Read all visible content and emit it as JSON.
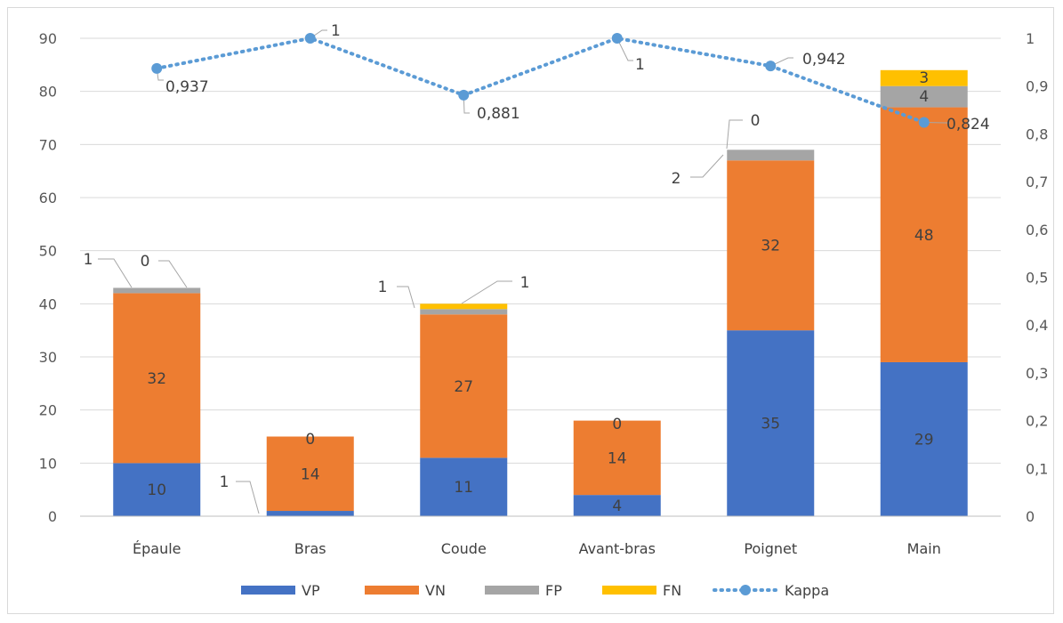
{
  "chart_data": {
    "type": "bar",
    "subtype": "stacked-bar-with-line-secondary-axis",
    "categories": [
      "Épaule",
      "Bras",
      "Coude",
      "Avant-bras",
      "Poignet",
      "Main"
    ],
    "series": [
      {
        "name": "VP",
        "kind": "bar",
        "color": "#4472c4",
        "values": [
          10,
          1,
          11,
          4,
          35,
          29
        ]
      },
      {
        "name": "VN",
        "kind": "bar",
        "color": "#ed7d31",
        "values": [
          32,
          14,
          27,
          14,
          32,
          48
        ]
      },
      {
        "name": "FP",
        "kind": "bar",
        "color": "#a5a5a5",
        "values": [
          1,
          0,
          1,
          0,
          2,
          4
        ]
      },
      {
        "name": "FN",
        "kind": "bar",
        "color": "#ffc000",
        "values": [
          0,
          0,
          1,
          0,
          0,
          3
        ]
      },
      {
        "name": "Kappa",
        "kind": "line",
        "axis": "secondary",
        "style": "dotted-with-markers",
        "color": "#5b9bd5",
        "values": [
          0.937,
          1,
          0.881,
          1,
          0.942,
          0.824
        ]
      }
    ],
    "data_labels": {
      "VP": [
        "10",
        "1",
        "11",
        "4",
        "35",
        "29"
      ],
      "VN": [
        "32",
        "14",
        "27",
        "14",
        "32",
        "48"
      ],
      "FP": [
        "1",
        "0",
        "1",
        "0",
        "2",
        "4"
      ],
      "FN": [
        "0",
        "0",
        "1",
        "0",
        "0",
        "3"
      ],
      "Kappa": [
        "0,937",
        "1",
        "0,881",
        "1",
        "0,942",
        "0,824"
      ]
    },
    "y_axis": {
      "min": 0,
      "max": 90,
      "ticks": [
        "0",
        "10",
        "20",
        "30",
        "40",
        "50",
        "60",
        "70",
        "80",
        "90"
      ]
    },
    "y2_axis": {
      "min": 0,
      "max": 1,
      "ticks": [
        "0",
        "0,1",
        "0,2",
        "0,3",
        "0,4",
        "0,5",
        "0,6",
        "0,7",
        "0,8",
        "0,9",
        "1"
      ]
    },
    "grid": true,
    "legend_position": "bottom",
    "legend": [
      "VP",
      "VN",
      "FP",
      "FN",
      "Kappa"
    ]
  }
}
